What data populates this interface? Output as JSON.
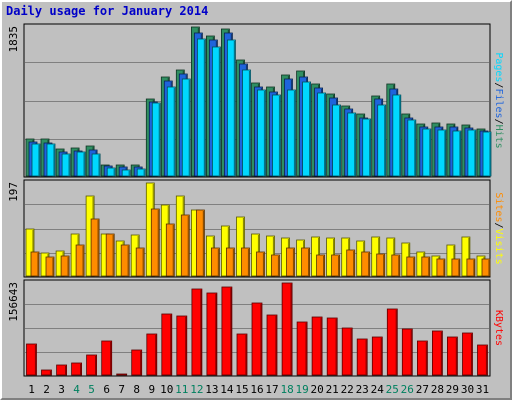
{
  "chart_data": {
    "title": "Daily usage for January 2014",
    "type": "bar",
    "categories": [
      "1",
      "2",
      "3",
      "4",
      "5",
      "6",
      "7",
      "8",
      "9",
      "10",
      "11",
      "12",
      "13",
      "14",
      "15",
      "16",
      "17",
      "18",
      "19",
      "20",
      "21",
      "22",
      "23",
      "24",
      "25",
      "26",
      "27",
      "28",
      "29",
      "30",
      "31"
    ],
    "weekend_days": [
      "4",
      "5",
      "11",
      "12",
      "18",
      "19",
      "25",
      "26"
    ],
    "panels": [
      {
        "id": "hits-files-pages",
        "max_label": "1835",
        "ylim": [
          0,
          1835
        ],
        "legend": [
          "Pages",
          "/",
          "Files",
          "/",
          "Hits"
        ],
        "series": [
          {
            "name": "Hits",
            "color": "#2f8f62",
            "values": [
              460,
              450,
              330,
              350,
              370,
              140,
              130,
              130,
              950,
              1220,
              1310,
              1835,
              1720,
              1810,
              1430,
              1140,
              1090,
              1250,
              1290,
              1130,
              1010,
              860,
              760,
              990,
              1130,
              760,
              640,
              650,
              640,
              630,
              580
            ]
          },
          {
            "name": "Files",
            "color": "#1e64dc",
            "values": [
              420,
              410,
              300,
              310,
              320,
              120,
              110,
              110,
              910,
              1170,
              1260,
              1760,
              1670,
              1760,
              1380,
              1100,
              1040,
              1200,
              1220,
              1080,
              960,
              820,
              720,
              950,
              1070,
              720,
              600,
              600,
              600,
              590,
              550
            ]
          },
          {
            "name": "Pages",
            "color": "#00d8ff",
            "values": [
              400,
              390,
              270,
              290,
              270,
              100,
              70,
              90,
              900,
              1090,
              1200,
              1690,
              1590,
              1680,
              1310,
              1060,
              1000,
              1060,
              1160,
              1020,
              870,
              770,
              700,
              870,
              1000,
              690,
              580,
              570,
              560,
              570,
              540
            ]
          }
        ]
      },
      {
        "id": "visits-sites",
        "max_label": "197",
        "ylim": [
          0,
          197
        ],
        "legend": [
          "Sites",
          "/",
          "Visits"
        ],
        "series": [
          {
            "name": "Visits",
            "color": "#ffff00",
            "values": [
              100,
              48,
              52,
              90,
              170,
              90,
              75,
              86,
              197,
              150,
              170,
              140,
              85,
              105,
              125,
              90,
              85,
              80,
              77,
              82,
              80,
              80,
              75,
              82,
              80,
              70,
              50,
              42,
              66,
              82,
              43
            ]
          },
          {
            "name": "Sites",
            "color": "#ff8c00",
            "values": [
              50,
              40,
              42,
              66,
              120,
              90,
              65,
              60,
              141,
              110,
              130,
              140,
              60,
              60,
              60,
              50,
              45,
              60,
              60,
              45,
              45,
              56,
              50,
              46,
              45,
              40,
              40,
              35,
              35,
              36,
              37
            ]
          }
        ]
      },
      {
        "id": "kbytes",
        "max_label": "156643",
        "ylim": [
          0,
          156643
        ],
        "legend": [
          "KBytes"
        ],
        "series": [
          {
            "name": "KBytes",
            "color": "#ff0000",
            "values": [
              53000,
              8000,
              17000,
              21000,
              34000,
              58000,
              2500,
              42000,
              69000,
              104000,
              101000,
              147000,
              140000,
              150000,
              69000,
              123000,
              102000,
              156643,
              91000,
              99000,
              97000,
              80000,
              61000,
              64000,
              113000,
              79000,
              58000,
              75000,
              65000,
              72000,
              51000
            ]
          }
        ]
      }
    ],
    "colors": {
      "background": "#c0c0c0",
      "plot_bg": "#c0c0c0",
      "grid": "#808080",
      "title": "#0000c8",
      "weekday_label": "#000000",
      "weekend_label": "#00805f"
    }
  }
}
